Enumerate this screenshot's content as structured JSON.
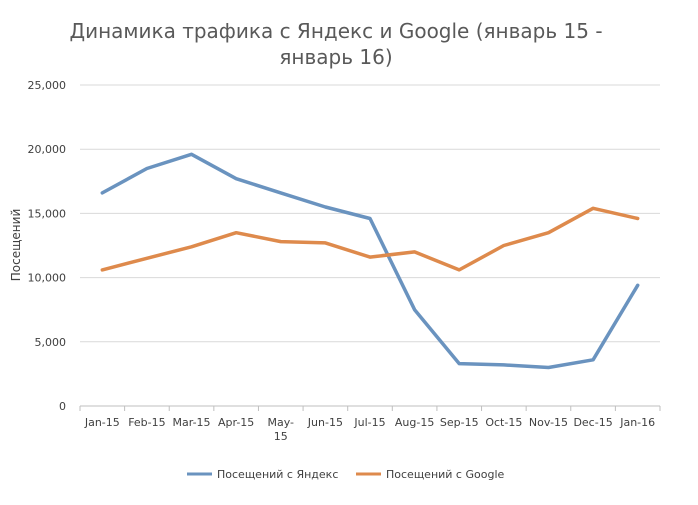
{
  "chart_data": {
    "type": "line",
    "title_line1": "Динамика трафика с Яндекс и Google (январь 15 -",
    "title_line2": "январь 16)",
    "ylabel": "Посещений",
    "xlabel": "",
    "ylim": [
      0,
      25000
    ],
    "yticks": [
      0,
      5000,
      10000,
      15000,
      20000,
      25000
    ],
    "ytick_labels": [
      "0",
      "5,000",
      "10,000",
      "15,000",
      "20,000",
      "25,000"
    ],
    "categories": [
      "Jan-15",
      "Feb-15",
      "Mar-15",
      "Apr-15",
      "May-15",
      "Jun-15",
      "Jul-15",
      "Aug-15",
      "Sep-15",
      "Oct-15",
      "Nov-15",
      "Dec-15",
      "Jan-16"
    ],
    "category_lines": [
      [
        "Jan-15"
      ],
      [
        "Feb-15"
      ],
      [
        "Mar-15"
      ],
      [
        "Apr-15"
      ],
      [
        "May-",
        "15"
      ],
      [
        "Jun-15"
      ],
      [
        "Jul-15"
      ],
      [
        "Aug-15"
      ],
      [
        "Sep-15"
      ],
      [
        "Oct-15"
      ],
      [
        "Nov-15"
      ],
      [
        "Dec-15"
      ],
      [
        "Jan-16"
      ]
    ],
    "grid": true,
    "legend_position": "bottom",
    "series": [
      {
        "name": "Посещений с Яндекс",
        "color": "#6a93bf",
        "values": [
          16600,
          18500,
          19600,
          17700,
          16600,
          15500,
          14600,
          7500,
          3300,
          3200,
          3000,
          3600,
          9400
        ]
      },
      {
        "name": "Посещений с Google",
        "color": "#de8a4c",
        "values": [
          10600,
          11500,
          12400,
          13500,
          12800,
          12700,
          11600,
          12000,
          10600,
          12500,
          13500,
          15400,
          14600
        ]
      }
    ]
  }
}
